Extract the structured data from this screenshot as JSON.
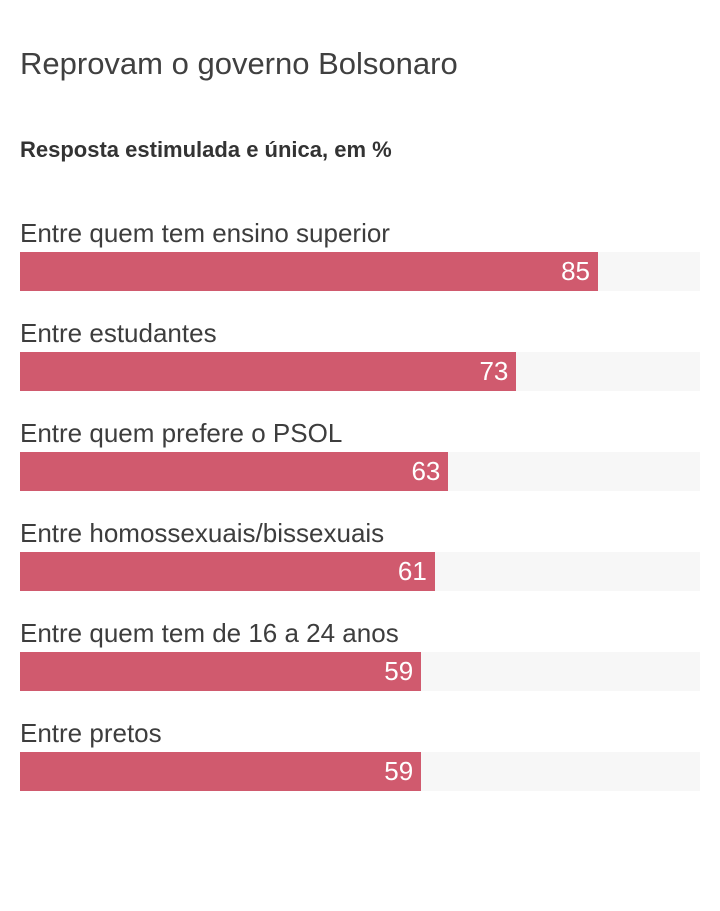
{
  "chart_data": {
    "type": "bar",
    "orientation": "horizontal",
    "title": "Reprovam o governo Bolsonaro",
    "subtitle": "Resposta estimulada e única, em %",
    "categories": [
      "Entre quem tem ensino superior",
      "Entre estudantes",
      "Entre quem prefere o PSOL",
      "Entre homossexuais/bissexuais",
      "Entre quem tem de 16 a 24 anos",
      "Entre pretos"
    ],
    "values": [
      85,
      73,
      63,
      61,
      59,
      59
    ],
    "xlim": [
      0,
      100
    ],
    "grid": false,
    "legend": false,
    "value_label_position": "inside-end",
    "colors": {
      "bar": "#d05a6e",
      "track": "#f7f7f7",
      "title": "#404040",
      "subtitle": "#333333",
      "label": "#3d3d3d",
      "value_text": "#ffffff",
      "background": "#ffffff"
    }
  }
}
